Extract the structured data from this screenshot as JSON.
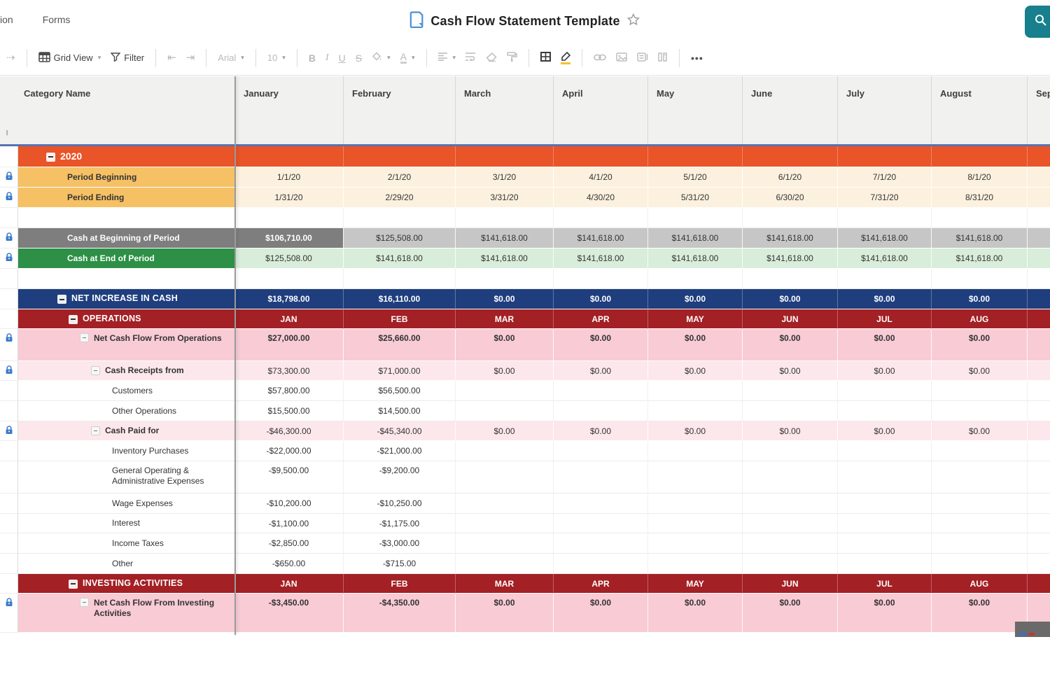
{
  "topbar": {
    "nav_items": [
      "ion",
      "Forms"
    ],
    "title": "Cash Flow Statement Template"
  },
  "toolbar": {
    "grid_view": "Grid View",
    "filter": "Filter",
    "font_family": "Arial",
    "font_size": "10",
    "bold": "B",
    "italic": "I",
    "underline": "U",
    "strikethrough": "S",
    "text_color": "A",
    "more": "•••"
  },
  "grid": {
    "columns": [
      "",
      "Category Name",
      "January",
      "February",
      "March",
      "April",
      "May",
      "June",
      "July",
      "August",
      "Sep"
    ],
    "rows": [
      {
        "label": "2020",
        "style": "year",
        "indent": 0,
        "collapse": "big",
        "locked": false,
        "values": [
          "",
          "",
          "",
          "",
          "",
          "",
          "",
          ""
        ]
      },
      {
        "label": "Period Beginning",
        "style": "period",
        "indent": 1,
        "locked": true,
        "values": [
          "1/1/20",
          "2/1/20",
          "3/1/20",
          "4/1/20",
          "5/1/20",
          "6/1/20",
          "7/1/20",
          "8/1/20"
        ]
      },
      {
        "label": "Period Ending",
        "style": "period",
        "indent": 1,
        "locked": true,
        "values": [
          "1/31/20",
          "2/29/20",
          "3/31/20",
          "4/30/20",
          "5/31/20",
          "6/30/20",
          "7/31/20",
          "8/31/20"
        ]
      },
      {
        "label": "",
        "style": "blank",
        "indent": 0,
        "values": [
          "",
          "",
          "",
          "",
          "",
          "",
          "",
          ""
        ]
      },
      {
        "label": "Cash at Beginning of Period",
        "style": "gray",
        "indent": 1,
        "locked": true,
        "values": [
          "$106,710.00",
          "$125,508.00",
          "$141,618.00",
          "$141,618.00",
          "$141,618.00",
          "$141,618.00",
          "$141,618.00",
          "$141,618.00"
        ]
      },
      {
        "label": "Cash at End of Period",
        "style": "green",
        "indent": 1,
        "locked": true,
        "values": [
          "$125,508.00",
          "$141,618.00",
          "$141,618.00",
          "$141,618.00",
          "$141,618.00",
          "$141,618.00",
          "$141,618.00",
          "$141,618.00"
        ]
      },
      {
        "label": "",
        "style": "blank",
        "indent": 0,
        "values": [
          "",
          "",
          "",
          "",
          "",
          "",
          "",
          ""
        ]
      },
      {
        "label": "NET INCREASE IN CASH",
        "style": "navy",
        "indent": 1,
        "collapse": "big",
        "values": [
          "$18,798.00",
          "$16,110.00",
          "$0.00",
          "$0.00",
          "$0.00",
          "$0.00",
          "$0.00",
          "$0.00"
        ]
      },
      {
        "label": "OPERATIONS",
        "style": "redh",
        "indent": 2,
        "collapse": "big",
        "values": [
          "JAN",
          "FEB",
          "MAR",
          "APR",
          "MAY",
          "JUN",
          "JUL",
          "AUG"
        ]
      },
      {
        "label": "Net Cash Flow From Operations",
        "style": "pink1",
        "indent": 3,
        "collapse": "small",
        "locked": true,
        "tall": true,
        "values": [
          "$27,000.00",
          "$25,660.00",
          "$0.00",
          "$0.00",
          "$0.00",
          "$0.00",
          "$0.00",
          "$0.00"
        ]
      },
      {
        "label": "Cash Receipts from",
        "style": "pink2",
        "indent": 4,
        "collapse": "small",
        "locked": true,
        "values": [
          "$73,300.00",
          "$71,000.00",
          "$0.00",
          "$0.00",
          "$0.00",
          "$0.00",
          "$0.00",
          "$0.00"
        ]
      },
      {
        "label": "Customers",
        "style": "white",
        "indent": 5,
        "values": [
          "$57,800.00",
          "$56,500.00",
          "",
          "",
          "",
          "",
          "",
          ""
        ]
      },
      {
        "label": "Other Operations",
        "style": "white",
        "indent": 5,
        "values": [
          "$15,500.00",
          "$14,500.00",
          "",
          "",
          "",
          "",
          "",
          ""
        ]
      },
      {
        "label": "Cash Paid for",
        "style": "pink2",
        "indent": 4,
        "collapse": "small",
        "locked": true,
        "values": [
          "-$46,300.00",
          "-$45,340.00",
          "$0.00",
          "$0.00",
          "$0.00",
          "$0.00",
          "$0.00",
          "$0.00"
        ]
      },
      {
        "label": "Inventory Purchases",
        "style": "white",
        "indent": 5,
        "values": [
          "-$22,000.00",
          "-$21,000.00",
          "",
          "",
          "",
          "",
          "",
          ""
        ]
      },
      {
        "label": "General Operating & Administrative Expenses",
        "style": "white",
        "indent": 5,
        "tall": true,
        "values": [
          "-$9,500.00",
          "-$9,200.00",
          "",
          "",
          "",
          "",
          "",
          ""
        ]
      },
      {
        "label": "Wage Expenses",
        "style": "white",
        "indent": 5,
        "values": [
          "-$10,200.00",
          "-$10,250.00",
          "",
          "",
          "",
          "",
          "",
          ""
        ]
      },
      {
        "label": "Interest",
        "style": "white",
        "indent": 5,
        "values": [
          "-$1,100.00",
          "-$1,175.00",
          "",
          "",
          "",
          "",
          "",
          ""
        ]
      },
      {
        "label": "Income Taxes",
        "style": "white",
        "indent": 5,
        "values": [
          "-$2,850.00",
          "-$3,000.00",
          "",
          "",
          "",
          "",
          "",
          ""
        ]
      },
      {
        "label": "Other",
        "style": "white",
        "indent": 5,
        "values": [
          "-$650.00",
          "-$715.00",
          "",
          "",
          "",
          "",
          "",
          ""
        ]
      },
      {
        "label": "INVESTING ACTIVITIES",
        "style": "redh",
        "indent": 2,
        "collapse": "big",
        "values": [
          "JAN",
          "FEB",
          "MAR",
          "APR",
          "MAY",
          "JUN",
          "JUL",
          "AUG"
        ]
      },
      {
        "label": "Net Cash Flow From Investing Activities",
        "style": "pink1",
        "indent": 3,
        "collapse": "small",
        "locked": true,
        "tall": true,
        "values": [
          "-$3,450.00",
          "-$4,350.00",
          "$0.00",
          "$0.00",
          "$0.00",
          "$0.00",
          "$0.00",
          "$0.00"
        ]
      }
    ]
  },
  "colors": {
    "accent_teal": "#17808C",
    "year_orange": "#E95428",
    "section_red": "#A32025",
    "net_navy": "#1E3E7E",
    "cash_green": "#2D9046",
    "cash_gray": "#7E7E7E",
    "lock_blue": "#3E7CC9",
    "header_line_blue": "#5873B2"
  }
}
